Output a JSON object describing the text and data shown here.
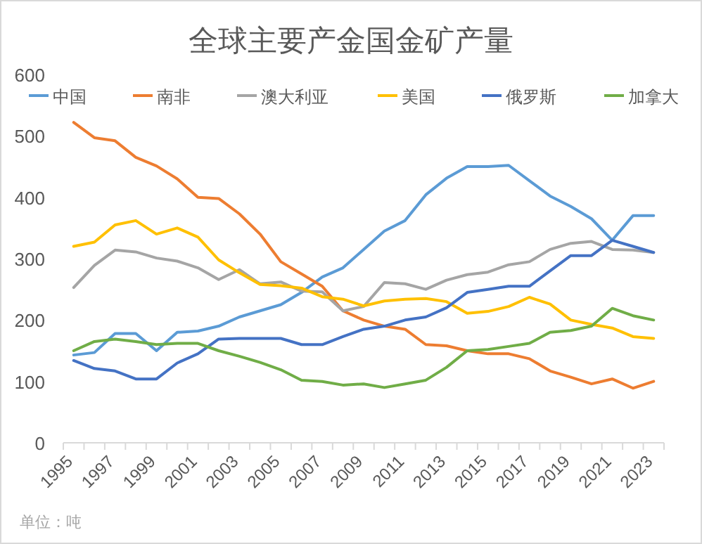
{
  "chart_data": {
    "type": "line",
    "title": "全球主要产金国金矿产量",
    "categories": [
      "1995",
      null,
      "1997",
      null,
      "1999",
      null,
      "2001",
      null,
      "2003",
      null,
      "2005",
      null,
      "2007",
      null,
      "2009",
      null,
      "2011",
      null,
      "2013",
      null,
      "2015",
      null,
      "2017",
      null,
      "2019",
      null,
      "2021",
      null,
      "2023"
    ],
    "ylim": [
      0,
      600
    ],
    "yticks": [
      0,
      100,
      200,
      300,
      400,
      500,
      600
    ],
    "grid": false,
    "legend": "top",
    "marker": "none",
    "line_style": "solid",
    "annotations": [
      "单位：吨"
    ],
    "series": [
      {
        "name": "中国",
        "color": "#5b9bd5",
        "values": [
          143,
          147,
          178,
          178,
          150,
          180,
          182,
          190,
          205,
          215,
          225,
          245,
          270,
          285,
          315,
          345,
          362,
          404,
          431,
          450,
          450,
          452,
          427,
          402,
          385,
          365,
          330,
          370,
          370
        ]
      },
      {
        "name": "南非",
        "color": "#ed7d31",
        "values": [
          522,
          497,
          492,
          465,
          451,
          430,
          400,
          398,
          373,
          340,
          295,
          275,
          255,
          215,
          200,
          190,
          185,
          160,
          158,
          150,
          145,
          145,
          137,
          117,
          107,
          96,
          104,
          89,
          100
        ]
      },
      {
        "name": "澳大利亚",
        "color": "#a5a5a5",
        "values": [
          253,
          289,
          314,
          311,
          301,
          296,
          285,
          266,
          282,
          259,
          262,
          247,
          246,
          215,
          222,
          261,
          259,
          250,
          265,
          274,
          278,
          290,
          295,
          315,
          325,
          328,
          315,
          314,
          310
        ]
      },
      {
        "name": "美国",
        "color": "#ffc000",
        "values": [
          320,
          327,
          355,
          362,
          340,
          350,
          335,
          298,
          277,
          258,
          256,
          252,
          238,
          234,
          223,
          231,
          234,
          235,
          230,
          211,
          214,
          222,
          237,
          226,
          200,
          193,
          187,
          173,
          170
        ]
      },
      {
        "name": "俄罗斯",
        "color": "#4472c4",
        "values": [
          134,
          121,
          117,
          104,
          104,
          130,
          145,
          169,
          170,
          170,
          170,
          160,
          160,
          173,
          185,
          190,
          200,
          205,
          220,
          245,
          250,
          255,
          255,
          280,
          305,
          305,
          330,
          320,
          310
        ]
      },
      {
        "name": "加拿大",
        "color": "#70ad47",
        "values": [
          150,
          165,
          169,
          165,
          160,
          162,
          162,
          150,
          141,
          131,
          119,
          102,
          100,
          94,
          96,
          90,
          96,
          102,
          123,
          150,
          152,
          157,
          162,
          180,
          183,
          190,
          219,
          207,
          200
        ]
      }
    ]
  }
}
